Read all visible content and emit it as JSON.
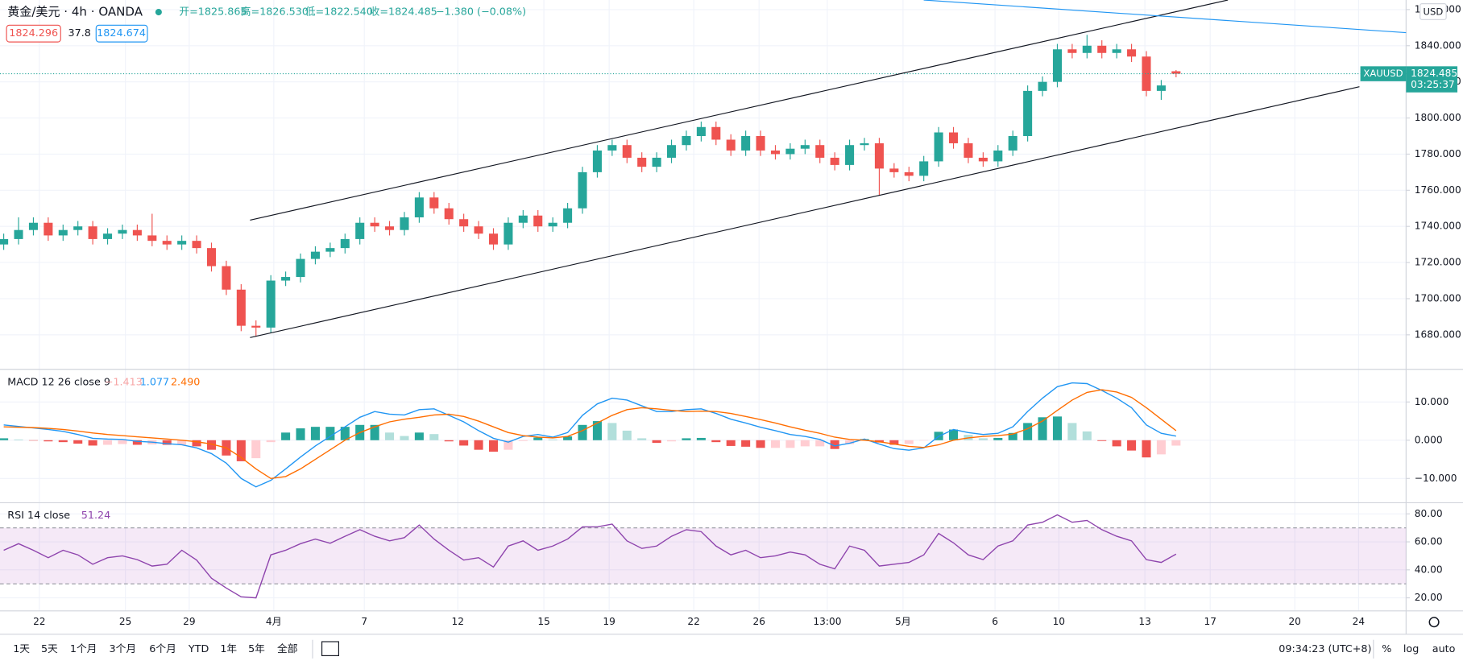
{
  "header": {
    "symbol_title": "黄金/美元 · 4h · OANDA",
    "ohlc_text": [
      "开=1825.865",
      "高=1826.530",
      "低=1822.540",
      "收=1824.485",
      "−1.380 (−0.08%)"
    ],
    "bid": "1824.296",
    "spread": "37.8",
    "ask": "1824.674",
    "currency": "USD",
    "symbol": "XAUUSD",
    "countdown": "03:25:37"
  },
  "chart_data": [
    {
      "type": "candlestick",
      "up_color": "#26a69a",
      "down_color": "#ef5350",
      "grid": true,
      "x": [
        0,
        1,
        2,
        3,
        4,
        5,
        6,
        7,
        8,
        9,
        10,
        11,
        12,
        13,
        14,
        15,
        16,
        17,
        18,
        19,
        20,
        21,
        22,
        23,
        24,
        25,
        26,
        27,
        28,
        29,
        30,
        31,
        32,
        33,
        34,
        35,
        36,
        37,
        38,
        39,
        40,
        41,
        42,
        43,
        44,
        45,
        46,
        47,
        48,
        49,
        50,
        51,
        52,
        53,
        54,
        55,
        56,
        57,
        58,
        59,
        60,
        61,
        62,
        63,
        64,
        65,
        66,
        67,
        68,
        69,
        70,
        71,
        72,
        73,
        74,
        75,
        76,
        77,
        78,
        79
      ],
      "open": [
        1730,
        1733,
        1738,
        1742,
        1735,
        1738,
        1740,
        1733,
        1736,
        1738,
        1735,
        1732,
        1730,
        1732,
        1728,
        1718,
        1705,
        1685,
        1684,
        1710,
        1712,
        1722,
        1726,
        1728,
        1733,
        1742,
        1740,
        1738,
        1745,
        1756,
        1750,
        1744,
        1740,
        1736,
        1730,
        1742,
        1746,
        1740,
        1742,
        1750,
        1770,
        1782,
        1785,
        1778,
        1773,
        1778,
        1785,
        1790,
        1795,
        1788,
        1782,
        1790,
        1782,
        1780,
        1783,
        1785,
        1778,
        1774,
        1785,
        1786,
        1772,
        1770,
        1768,
        1776,
        1792,
        1786,
        1778,
        1776,
        1782,
        1790,
        1815,
        1820,
        1838,
        1836,
        1840,
        1836,
        1838,
        1834,
        1815,
        1825.865
      ],
      "high": [
        1736,
        1745,
        1745,
        1745,
        1741,
        1743,
        1743,
        1739,
        1741,
        1741,
        1747,
        1735,
        1735,
        1735,
        1731,
        1721,
        1708,
        1688,
        1713,
        1715,
        1725,
        1729,
        1731,
        1736,
        1745,
        1745,
        1743,
        1748,
        1759,
        1759,
        1753,
        1747,
        1743,
        1739,
        1745,
        1749,
        1749,
        1745,
        1753,
        1773,
        1785,
        1788,
        1788,
        1781,
        1781,
        1788,
        1793,
        1798,
        1798,
        1791,
        1793,
        1793,
        1785,
        1786,
        1788,
        1788,
        1781,
        1788,
        1789,
        1789,
        1775,
        1773,
        1779,
        1795,
        1795,
        1789,
        1781,
        1785,
        1793,
        1818,
        1823,
        1841,
        1841,
        1846,
        1843,
        1841,
        1841,
        1837,
        1821,
        1826.53
      ],
      "low": [
        1727,
        1730,
        1735,
        1732,
        1732,
        1735,
        1730,
        1730,
        1733,
        1732,
        1729,
        1727,
        1727,
        1725,
        1715,
        1702,
        1682,
        1679,
        1681,
        1707,
        1709,
        1719,
        1723,
        1725,
        1730,
        1737,
        1735,
        1735,
        1742,
        1747,
        1741,
        1737,
        1733,
        1727,
        1727,
        1739,
        1737,
        1737,
        1739,
        1747,
        1767,
        1779,
        1775,
        1770,
        1770,
        1775,
        1782,
        1787,
        1785,
        1779,
        1779,
        1779,
        1777,
        1777,
        1780,
        1775,
        1771,
        1771,
        1782,
        1757,
        1767,
        1765,
        1765,
        1773,
        1783,
        1775,
        1773,
        1773,
        1779,
        1787,
        1812,
        1817,
        1833,
        1833,
        1833,
        1833,
        1831,
        1812,
        1810,
        1822.54
      ],
      "close": [
        1733,
        1738,
        1742,
        1735,
        1738,
        1740,
        1733,
        1736,
        1738,
        1735,
        1732,
        1730,
        1732,
        1728,
        1718,
        1705,
        1685,
        1684,
        1710,
        1712,
        1722,
        1726,
        1728,
        1733,
        1742,
        1740,
        1738,
        1745,
        1756,
        1750,
        1744,
        1740,
        1736,
        1730,
        1742,
        1746,
        1740,
        1742,
        1750,
        1770,
        1782,
        1785,
        1778,
        1773,
        1778,
        1785,
        1790,
        1795,
        1788,
        1782,
        1790,
        1782,
        1780,
        1783,
        1785,
        1778,
        1774,
        1785,
        1786,
        1772,
        1770,
        1768,
        1776,
        1792,
        1786,
        1778,
        1776,
        1782,
        1790,
        1815,
        1820,
        1838,
        1836,
        1840,
        1836,
        1838,
        1834,
        1815,
        1818,
        1824.485
      ],
      "ylim": [
        1661.4,
        1865.3
      ],
      "yticks": [
        {
          "value": 1680,
          "label": "1680.000"
        },
        {
          "value": 1700,
          "label": "1700.000"
        },
        {
          "value": 1720,
          "label": "1720.000"
        },
        {
          "value": 1740,
          "label": "1740.000"
        },
        {
          "value": 1760,
          "label": "1760.000"
        },
        {
          "value": 1780,
          "label": "1780.000"
        },
        {
          "value": 1800,
          "label": "1800.000"
        },
        {
          "value": 1820,
          "label": "1820.000"
        },
        {
          "value": 1840,
          "label": "1840.000"
        },
        {
          "value": 1860,
          "label": "1860.000"
        }
      ],
      "xlim": [
        -0.25,
        94.5
      ],
      "xticks": [
        {
          "value": 2.4,
          "label": "22"
        },
        {
          "value": 8.2,
          "label": "25"
        },
        {
          "value": 12.5,
          "label": "29"
        },
        {
          "value": 18.2,
          "label": "4月"
        },
        {
          "value": 24.3,
          "label": "7"
        },
        {
          "value": 30.6,
          "label": "12"
        },
        {
          "value": 36.4,
          "label": "15"
        },
        {
          "value": 40.8,
          "label": "19"
        },
        {
          "value": 46.5,
          "label": "22"
        },
        {
          "value": 50.9,
          "label": "26"
        },
        {
          "value": 55.5,
          "label": "13:00"
        },
        {
          "value": 60.6,
          "label": "5月"
        },
        {
          "value": 66.8,
          "label": "6"
        },
        {
          "value": 71.1,
          "label": "10"
        },
        {
          "value": 76.9,
          "label": "13"
        },
        {
          "value": 81.3,
          "label": "17"
        },
        {
          "value": 87.0,
          "label": "20"
        },
        {
          "value": 91.3,
          "label": "24"
        }
      ]
    },
    {
      "type": "macd",
      "title": "MACD 12 26 close 9",
      "grid": true,
      "legend_labels": [
        {
          "text": "−1.413",
          "color": "#f7a5a5"
        },
        {
          "text": "1.077",
          "color": "#2196f3"
        },
        {
          "text": "2.490",
          "color": "#ff6d00"
        }
      ],
      "macd": {
        "color": "#2196f3",
        "values": [
          4.0,
          3.6,
          3.2,
          2.8,
          2.3,
          1.5,
          0.5,
          0.3,
          0.2,
          -0.3,
          -0.5,
          -0.9,
          -1.2,
          -2.0,
          -3.5,
          -6.0,
          -10.0,
          -12.2,
          -10.5,
          -7.5,
          -4.4,
          -1.5,
          1.0,
          3.5,
          6.0,
          7.5,
          6.8,
          6.6,
          8.0,
          8.2,
          6.5,
          4.8,
          2.5,
          0.5,
          -0.5,
          1.0,
          1.5,
          0.8,
          2.0,
          6.5,
          9.5,
          11.0,
          10.5,
          9.0,
          7.5,
          7.5,
          8.0,
          8.2,
          7.0,
          5.5,
          4.5,
          3.4,
          2.5,
          1.5,
          1.0,
          0.2,
          -1.5,
          -0.8,
          0.3,
          -1.0,
          -2.2,
          -2.6,
          -2.0,
          1.0,
          2.8,
          2.0,
          1.5,
          1.8,
          3.5,
          7.5,
          11.0,
          14.0,
          15.0,
          14.8,
          13.0,
          11.0,
          8.5,
          4.0,
          1.8,
          1.077
        ]
      },
      "signal": {
        "color": "#ff6d00",
        "values": [
          3.5,
          3.4,
          3.3,
          3.1,
          2.8,
          2.4,
          1.9,
          1.5,
          1.2,
          0.9,
          0.6,
          0.3,
          0,
          -0.4,
          -1.0,
          -2.0,
          -4.5,
          -7.5,
          -10.0,
          -9.5,
          -7.5,
          -5.0,
          -2.5,
          0,
          2.0,
          3.5,
          4.8,
          5.5,
          6.0,
          6.6,
          6.8,
          6.2,
          5.0,
          3.5,
          2.0,
          1.2,
          0.8,
          0.6,
          1.0,
          2.5,
          4.5,
          6.5,
          8.0,
          8.5,
          8.2,
          7.8,
          7.5,
          7.6,
          7.5,
          7.0,
          6.2,
          5.4,
          4.5,
          3.5,
          2.6,
          1.8,
          0.8,
          0.2,
          0,
          -0.4,
          -1.0,
          -1.6,
          -1.9,
          -1.2,
          0,
          0.6,
          1.0,
          1.2,
          1.6,
          3.0,
          5.0,
          7.8,
          10.5,
          12.5,
          13.2,
          12.6,
          11.2,
          8.5,
          5.5,
          2.49
        ]
      },
      "histogram": {
        "colors": [
          "#26a69a",
          "#b2dfdb",
          "#ef5350",
          "#ffcdd2"
        ],
        "values": [
          0.5,
          0.2,
          -0.1,
          -0.3,
          -0.5,
          -0.9,
          -1.4,
          -1.2,
          -1.0,
          -1.2,
          -1.1,
          -1.2,
          -1.2,
          -1.6,
          -2.5,
          -4.0,
          -5.5,
          -4.7,
          -0.5,
          2.0,
          3.1,
          3.5,
          3.5,
          3.5,
          4.0,
          4.0,
          2.0,
          1.1,
          2.0,
          1.6,
          -0.3,
          -1.4,
          -2.5,
          -3.0,
          -2.5,
          -0.2,
          0.7,
          0.2,
          1.0,
          4.0,
          5.0,
          4.5,
          2.5,
          0.5,
          -0.7,
          -0.3,
          0.5,
          0.6,
          -0.5,
          -1.5,
          -1.7,
          -2.0,
          -2.0,
          -2.0,
          -1.6,
          -1.6,
          -2.3,
          -1.0,
          0.3,
          -0.6,
          -1.2,
          -1.0,
          -0.1,
          2.2,
          2.8,
          1.4,
          0.5,
          0.6,
          1.9,
          4.5,
          6.0,
          6.2,
          4.5,
          2.3,
          -0.2,
          -1.6,
          -2.7,
          -4.5,
          -3.7,
          -1.413
        ]
      },
      "ylim": [
        -16.1,
        18.29
      ],
      "yticks": [
        {
          "value": 10,
          "label": "10.000"
        },
        {
          "value": 0,
          "label": "0.000"
        },
        {
          "value": -10,
          "label": "−10.000"
        }
      ]
    },
    {
      "type": "rsi",
      "title": "RSI 14 close",
      "color": "#8e44ad",
      "band": [
        30,
        70
      ],
      "band_color": "#9c27b0",
      "grid": true,
      "values": [
        54,
        58.7,
        54,
        48.7,
        54,
        50.7,
        44,
        48.7,
        50,
        47.3,
        42.7,
        44,
        54,
        47,
        34,
        27,
        20.7,
        20,
        50.7,
        54,
        58.7,
        62,
        59,
        64,
        68.7,
        64,
        60.7,
        63,
        72,
        62,
        54,
        47,
        48.7,
        42,
        57,
        60.7,
        54,
        57,
        62,
        70.7,
        70.7,
        72.7,
        60.7,
        55.3,
        57,
        64,
        68.7,
        67.3,
        57,
        50.7,
        54,
        48.7,
        50,
        52.7,
        50.7,
        44,
        40.7,
        57,
        54,
        42.7,
        44,
        45.3,
        50.7,
        66,
        59.3,
        50.7,
        47.3,
        57,
        60.7,
        72,
        74,
        79.3,
        74,
        75.3,
        68.7,
        64,
        60.7,
        47.3,
        45.3,
        51.24
      ],
      "ylim": [
        10.67,
        87.3
      ],
      "yticks": [
        {
          "value": 80,
          "label": "80.00"
        },
        {
          "value": 60,
          "label": "60.00"
        },
        {
          "value": 40,
          "label": "40.00"
        },
        {
          "value": 20,
          "label": "20.00"
        }
      ]
    }
  ],
  "toolbar": {
    "ranges": [
      "1天",
      "5天",
      "1个月",
      "3个月",
      "6个月",
      "YTD",
      "1年",
      "5年",
      "全部"
    ],
    "clock": "09:34:23 (UTC+8)",
    "options": [
      "%",
      "log",
      "auto"
    ]
  }
}
